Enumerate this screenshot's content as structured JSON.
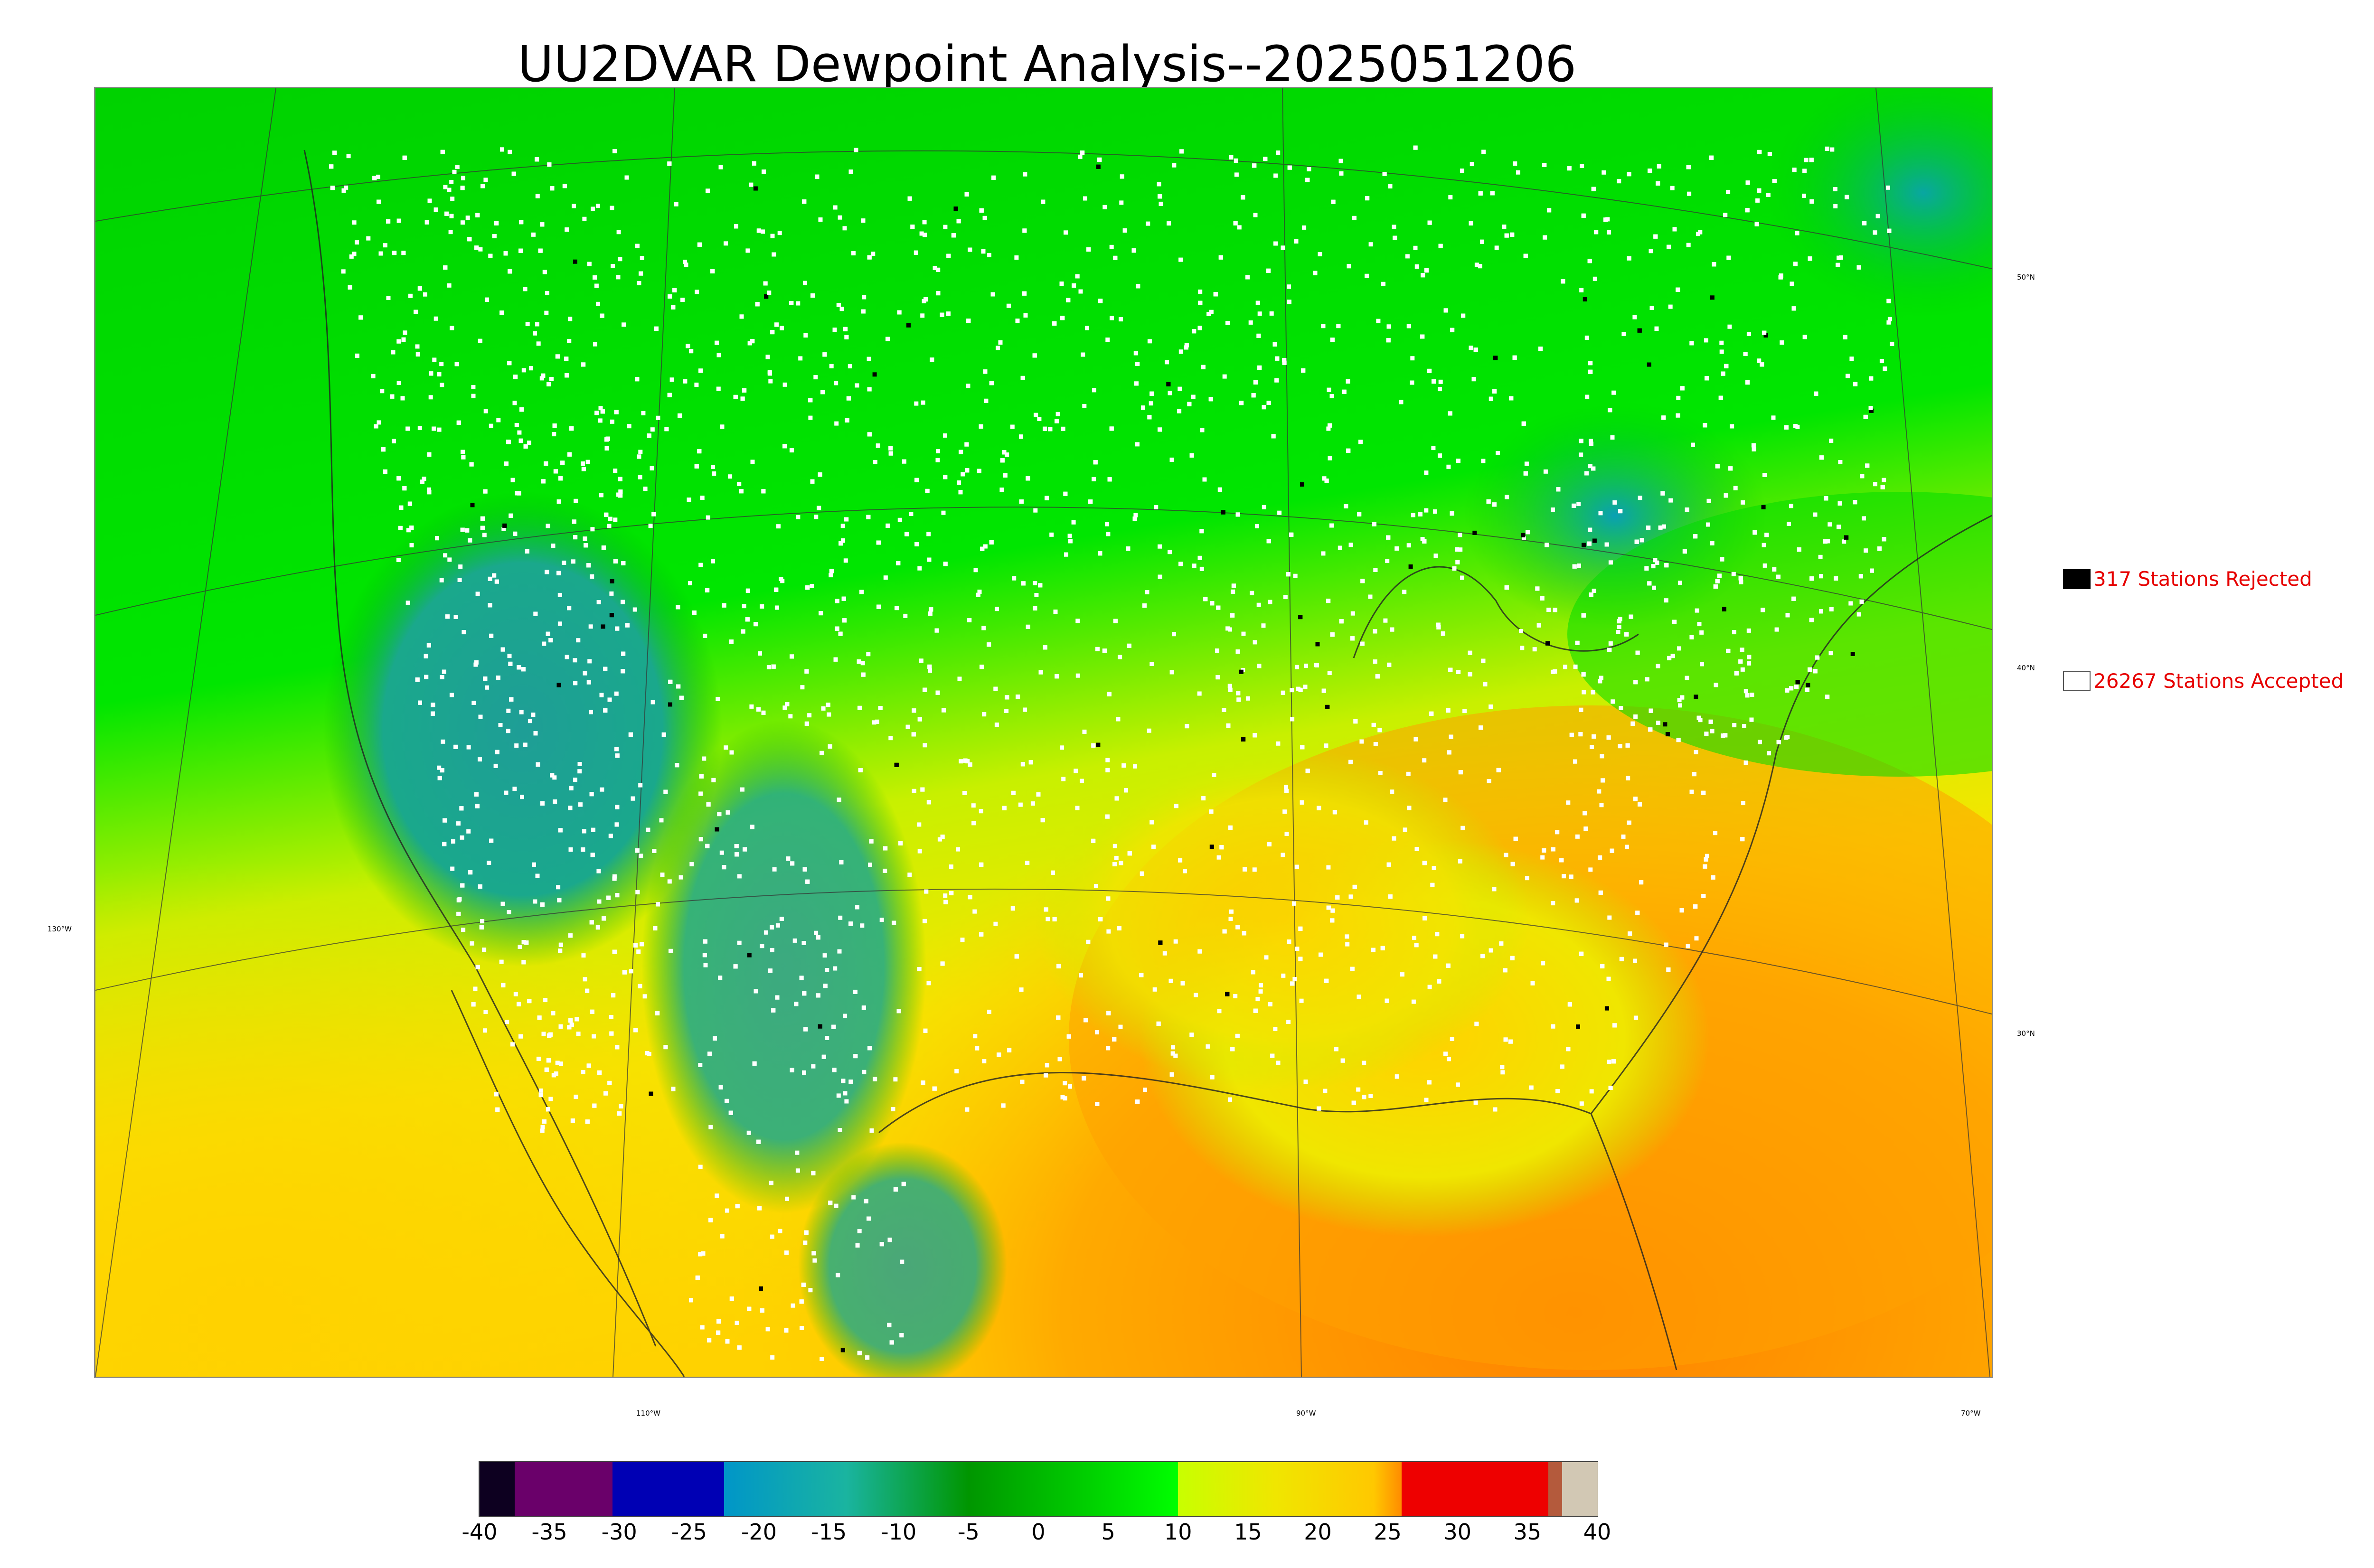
{
  "title": "UU2DVAR Dewpoint Analysis--2025051206",
  "legend": {
    "rejected_label": "317 Stations Rejected",
    "accepted_label": "26267 Stations Accepted"
  },
  "graticule": {
    "lat_labels": [
      "50°N",
      "40°N",
      "30°N"
    ],
    "lon_labels": [
      "130°W",
      "110°W",
      "90°W",
      "70°W"
    ]
  },
  "colorbar": {
    "range": [
      -40,
      40
    ],
    "ticks": [
      "-40",
      "-35",
      "-30",
      "-25",
      "-20",
      "-15",
      "-10",
      "-5",
      "0",
      "5",
      "10",
      "15",
      "20",
      "25",
      "30",
      "35",
      "40"
    ],
    "colors": {
      "neg40": "#0d0020",
      "neg35": "#6a006a",
      "neg30": "#0000b4",
      "neg20": "#0096c8",
      "neg10": "#1ab4a0",
      "neg5": "#009600",
      "zero": "#00c800",
      "pos5": "#00ff00",
      "pos10": "#c8ff00",
      "pos15": "#f0e600",
      "pos20": "#ffc800",
      "pos25": "#ff8c00",
      "pos30": "#ee0000",
      "pos37": "#b45a3c",
      "pos39": "#d2c8b4"
    }
  },
  "map_colors": {
    "ocean_warm": "#ff9600",
    "ocean_mid": "#ffd200",
    "land_green": "#00dc00",
    "land_dark": "#00a000",
    "dry_teal": "#1e9e96",
    "arctic_blue": "#00a0c8",
    "station_accepted": "#ffffff",
    "station_rejected": "#000000"
  }
}
